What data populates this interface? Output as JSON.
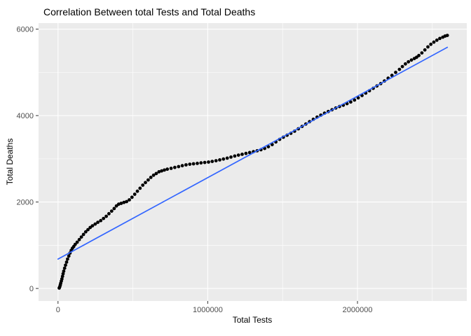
{
  "chart_data": {
    "type": "scatter",
    "title": "Correlation Between total Tests and Total Deaths",
    "xlabel": "Total Tests",
    "ylabel": "Total Deaths",
    "xlim": [
      -130000,
      2730000
    ],
    "ylim": [
      -290,
      6140
    ],
    "x_ticks": [
      0,
      1000000,
      2000000
    ],
    "x_tick_labels": [
      "0",
      "1000000",
      "2000000"
    ],
    "y_ticks": [
      0,
      2000,
      4000,
      6000
    ],
    "y_tick_labels": [
      "0",
      "2000",
      "4000",
      "6000"
    ],
    "x_minor_gridlines": [
      500000,
      1500000,
      2500000
    ],
    "y_minor_gridlines": [
      1000,
      3000,
      5000
    ],
    "grid": true,
    "legend": "none",
    "panel_bg": "#EBEBEB",
    "grid_color": "#FFFFFF",
    "point_color": "#000000",
    "line_color": "#3366FF",
    "tick_color": "#333333",
    "tick_label_color": "#4D4D4D",
    "regression_line": {
      "x1": 0,
      "y1": 680,
      "x2": 2600000,
      "y2": 5580
    },
    "points": [
      [
        8000,
        10
      ],
      [
        12000,
        40
      ],
      [
        15000,
        80
      ],
      [
        18000,
        120
      ],
      [
        22000,
        170
      ],
      [
        26000,
        220
      ],
      [
        30000,
        280
      ],
      [
        34000,
        340
      ],
      [
        38000,
        400
      ],
      [
        44000,
        470
      ],
      [
        50000,
        540
      ],
      [
        57000,
        610
      ],
      [
        64000,
        680
      ],
      [
        72000,
        750
      ],
      [
        80000,
        820
      ],
      [
        88000,
        880
      ],
      [
        96000,
        930
      ],
      [
        105000,
        970
      ],
      [
        115000,
        1020
      ],
      [
        128000,
        1070
      ],
      [
        142000,
        1130
      ],
      [
        156000,
        1190
      ],
      [
        170000,
        1250
      ],
      [
        185000,
        1310
      ],
      [
        200000,
        1360
      ],
      [
        215000,
        1410
      ],
      [
        230000,
        1450
      ],
      [
        248000,
        1490
      ],
      [
        266000,
        1530
      ],
      [
        285000,
        1570
      ],
      [
        304000,
        1620
      ],
      [
        322000,
        1670
      ],
      [
        340000,
        1730
      ],
      [
        358000,
        1790
      ],
      [
        375000,
        1850
      ],
      [
        390000,
        1910
      ],
      [
        405000,
        1950
      ],
      [
        422000,
        1970
      ],
      [
        440000,
        1990
      ],
      [
        458000,
        2010
      ],
      [
        476000,
        2050
      ],
      [
        494000,
        2110
      ],
      [
        512000,
        2180
      ],
      [
        530000,
        2250
      ],
      [
        548000,
        2320
      ],
      [
        566000,
        2390
      ],
      [
        584000,
        2450
      ],
      [
        602000,
        2510
      ],
      [
        620000,
        2570
      ],
      [
        638000,
        2620
      ],
      [
        656000,
        2660
      ],
      [
        674000,
        2700
      ],
      [
        692000,
        2720
      ],
      [
        710000,
        2740
      ],
      [
        730000,
        2760
      ],
      [
        755000,
        2780
      ],
      [
        780000,
        2800
      ],
      [
        805000,
        2820
      ],
      [
        830000,
        2840
      ],
      [
        855000,
        2860
      ],
      [
        880000,
        2875
      ],
      [
        905000,
        2885
      ],
      [
        930000,
        2895
      ],
      [
        955000,
        2905
      ],
      [
        980000,
        2915
      ],
      [
        1005000,
        2925
      ],
      [
        1030000,
        2940
      ],
      [
        1055000,
        2955
      ],
      [
        1080000,
        2975
      ],
      [
        1105000,
        2995
      ],
      [
        1130000,
        3015
      ],
      [
        1155000,
        3040
      ],
      [
        1180000,
        3065
      ],
      [
        1205000,
        3085
      ],
      [
        1230000,
        3105
      ],
      [
        1255000,
        3125
      ],
      [
        1280000,
        3145
      ],
      [
        1305000,
        3165
      ],
      [
        1330000,
        3185
      ],
      [
        1355000,
        3210
      ],
      [
        1380000,
        3240
      ],
      [
        1405000,
        3280
      ],
      [
        1430000,
        3330
      ],
      [
        1455000,
        3390
      ],
      [
        1480000,
        3450
      ],
      [
        1505000,
        3500
      ],
      [
        1530000,
        3545
      ],
      [
        1555000,
        3590
      ],
      [
        1580000,
        3640
      ],
      [
        1605000,
        3695
      ],
      [
        1630000,
        3750
      ],
      [
        1655000,
        3805
      ],
      [
        1680000,
        3860
      ],
      [
        1705000,
        3915
      ],
      [
        1730000,
        3965
      ],
      [
        1755000,
        4010
      ],
      [
        1780000,
        4055
      ],
      [
        1805000,
        4095
      ],
      [
        1830000,
        4135
      ],
      [
        1855000,
        4175
      ],
      [
        1880000,
        4210
      ],
      [
        1905000,
        4240
      ],
      [
        1930000,
        4275
      ],
      [
        1955000,
        4315
      ],
      [
        1980000,
        4360
      ],
      [
        2005000,
        4410
      ],
      [
        2030000,
        4465
      ],
      [
        2055000,
        4520
      ],
      [
        2080000,
        4575
      ],
      [
        2105000,
        4630
      ],
      [
        2130000,
        4685
      ],
      [
        2155000,
        4740
      ],
      [
        2180000,
        4800
      ],
      [
        2205000,
        4865
      ],
      [
        2230000,
        4930
      ],
      [
        2255000,
        5000
      ],
      [
        2280000,
        5070
      ],
      [
        2300000,
        5135
      ],
      [
        2320000,
        5195
      ],
      [
        2340000,
        5245
      ],
      [
        2360000,
        5285
      ],
      [
        2380000,
        5320
      ],
      [
        2395000,
        5350
      ],
      [
        2410000,
        5390
      ],
      [
        2430000,
        5450
      ],
      [
        2450000,
        5520
      ],
      [
        2470000,
        5590
      ],
      [
        2490000,
        5650
      ],
      [
        2510000,
        5700
      ],
      [
        2530000,
        5745
      ],
      [
        2550000,
        5785
      ],
      [
        2570000,
        5815
      ],
      [
        2585000,
        5840
      ],
      [
        2600000,
        5855
      ]
    ]
  }
}
